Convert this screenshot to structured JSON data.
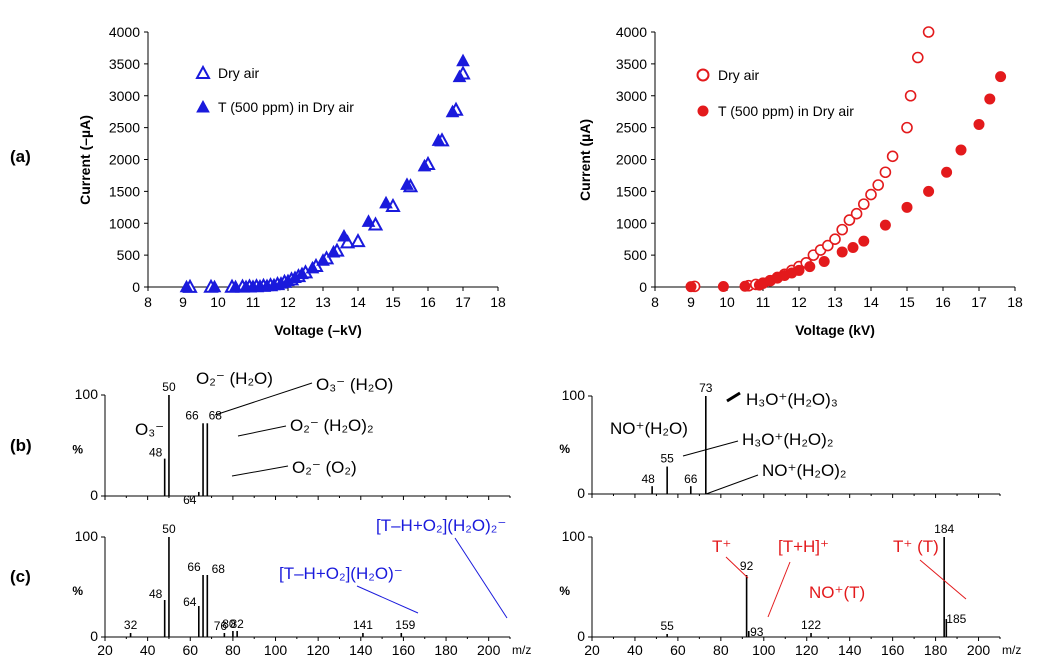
{
  "panel_labels": [
    "(a)",
    "(b)",
    "(c)"
  ],
  "colors": {
    "blue": "#1a1adc",
    "red": "#e31a1c",
    "black": "#000000"
  },
  "chart_data": [
    {
      "id": "a-left",
      "type": "scatter",
      "xlabel": "Voltage (–kV)",
      "ylabel": "Current (–µA)",
      "xlim": [
        8,
        18
      ],
      "ylim": [
        0,
        4000
      ],
      "xticks": [
        8,
        9,
        10,
        11,
        12,
        13,
        14,
        15,
        16,
        17,
        18
      ],
      "yticks": [
        0,
        500,
        1000,
        1500,
        2000,
        2500,
        3000,
        3500,
        4000
      ],
      "legend_position": "top-left",
      "series": [
        {
          "name": "Dry air",
          "marker": "triangle-open",
          "color": "#1a1adc",
          "x": [
            9.2,
            9.8,
            10.4,
            10.7,
            10.9,
            11.1,
            11.3,
            11.5,
            11.7,
            11.9,
            12.1,
            12.3,
            12.5,
            12.8,
            13.1,
            13.4,
            13.7,
            14.0,
            14.5,
            15.0,
            15.5,
            16.0,
            16.4,
            16.8,
            17.0
          ],
          "y": [
            2,
            3,
            4,
            6,
            8,
            12,
            18,
            28,
            45,
            80,
            120,
            170,
            230,
            330,
            450,
            570,
            700,
            720,
            980,
            1270,
            1580,
            1930,
            2300,
            2780,
            3350
          ]
        },
        {
          "name": "T (500 ppm) in Dry air",
          "marker": "triangle-filled",
          "color": "#1a1adc",
          "x": [
            9.1,
            9.9,
            10.5,
            10.8,
            11.0,
            11.2,
            11.4,
            11.6,
            11.8,
            12.0,
            12.2,
            12.4,
            12.7,
            13.0,
            13.3,
            13.6,
            14.3,
            14.8,
            15.4,
            15.9,
            16.3,
            16.7,
            16.9,
            17.0
          ],
          "y": [
            3,
            4,
            5,
            7,
            10,
            15,
            22,
            35,
            60,
            100,
            150,
            210,
            300,
            420,
            550,
            800,
            1030,
            1320,
            1610,
            1900,
            2300,
            2750,
            3300,
            3550
          ]
        }
      ]
    },
    {
      "id": "a-right",
      "type": "scatter",
      "xlabel": "Voltage (kV)",
      "ylabel": "Current (µA)",
      "xlim": [
        8,
        18
      ],
      "ylim": [
        0,
        4000
      ],
      "xticks": [
        8,
        9,
        10,
        11,
        12,
        13,
        14,
        15,
        16,
        17,
        18
      ],
      "yticks": [
        0,
        500,
        1000,
        1500,
        2000,
        2500,
        3000,
        3500,
        4000
      ],
      "legend_position": "top-left",
      "series": [
        {
          "name": "Dry air",
          "marker": "circle-open",
          "color": "#e31a1c",
          "x": [
            9.1,
            10.6,
            10.8,
            11.0,
            11.2,
            11.4,
            11.6,
            11.8,
            12.0,
            12.2,
            12.4,
            12.6,
            12.8,
            13.0,
            13.2,
            13.4,
            13.6,
            13.8,
            14.0,
            14.2,
            14.4,
            14.6,
            15.0,
            15.1,
            15.3,
            15.6
          ],
          "y": [
            10,
            20,
            40,
            60,
            100,
            150,
            200,
            260,
            320,
            380,
            500,
            580,
            650,
            750,
            900,
            1050,
            1150,
            1300,
            1450,
            1600,
            1800,
            2050,
            2500,
            3000,
            3600,
            4000
          ]
        },
        {
          "name": "T (500 ppm) in Dry air",
          "marker": "circle-filled",
          "color": "#e31a1c",
          "x": [
            9.0,
            9.9,
            10.5,
            10.9,
            11.0,
            11.2,
            11.4,
            11.6,
            11.8,
            12.0,
            12.3,
            12.7,
            13.2,
            13.5,
            13.8,
            14.4,
            15.0,
            15.6,
            16.1,
            16.5,
            17.0,
            17.3,
            17.6
          ],
          "y": [
            5,
            8,
            12,
            30,
            60,
            100,
            140,
            180,
            220,
            260,
            320,
            400,
            550,
            620,
            720,
            970,
            1250,
            1500,
            1800,
            2150,
            2550,
            2950,
            3300
          ]
        }
      ]
    },
    {
      "id": "b-left",
      "type": "bar",
      "ylabel": "%",
      "xlim": [
        20,
        210
      ],
      "ylim": [
        0,
        100
      ],
      "yticks": [
        0,
        100
      ],
      "peaks": [
        {
          "x": 48,
          "y": 37,
          "label": "48"
        },
        {
          "x": 50,
          "y": 100,
          "label": "50"
        },
        {
          "x": 64,
          "y": 4,
          "label": "64"
        },
        {
          "x": 66,
          "y": 72,
          "label": "66"
        },
        {
          "x": 68,
          "y": 72,
          "label": "68"
        }
      ],
      "annotations": [
        {
          "text": "O₃⁻",
          "color": "#000000"
        },
        {
          "text": "O₂⁻ (H₂O)",
          "color": "#000000"
        },
        {
          "text": "O₃⁻ (H₂O)",
          "color": "#000000"
        },
        {
          "text": "O₂⁻ (H₂O)₂",
          "color": "#000000"
        },
        {
          "text": "O₂⁻ (O₂)",
          "color": "#000000"
        }
      ]
    },
    {
      "id": "b-right",
      "type": "bar",
      "ylabel": "%",
      "xlim": [
        20,
        210
      ],
      "ylim": [
        0,
        100
      ],
      "yticks": [
        0,
        100
      ],
      "peaks": [
        {
          "x": 48,
          "y": 8,
          "label": "48"
        },
        {
          "x": 55,
          "y": 28,
          "label": "55"
        },
        {
          "x": 66,
          "y": 8,
          "label": "66"
        },
        {
          "x": 73,
          "y": 100,
          "label": "73"
        }
      ],
      "annotations": [
        {
          "text": "NO⁺(H₂O)",
          "color": "#000000"
        },
        {
          "text": "H₃O⁺(H₂O)₃",
          "color": "#000000"
        },
        {
          "text": "H₃O⁺(H₂O)₂",
          "color": "#000000"
        },
        {
          "text": "NO⁺(H₂O)₂",
          "color": "#000000"
        }
      ]
    },
    {
      "id": "c-left",
      "type": "bar",
      "ylabel": "%",
      "xlim": [
        20,
        210
      ],
      "ylim": [
        0,
        100
      ],
      "yticks": [
        0,
        100
      ],
      "xticks": [
        20,
        40,
        60,
        80,
        100,
        120,
        140,
        160,
        180,
        200
      ],
      "xunit": "m/z",
      "peaks": [
        {
          "x": 32,
          "y": 4,
          "label": "32"
        },
        {
          "x": 48,
          "y": 37,
          "label": "48"
        },
        {
          "x": 50,
          "y": 100,
          "label": "50"
        },
        {
          "x": 64,
          "y": 31,
          "label": "64"
        },
        {
          "x": 66,
          "y": 62,
          "label": "66"
        },
        {
          "x": 68,
          "y": 62,
          "label": "68"
        },
        {
          "x": 76,
          "y": 4,
          "label": "76"
        },
        {
          "x": 80,
          "y": 6,
          "label": "80"
        },
        {
          "x": 82,
          "y": 6,
          "label": "82"
        },
        {
          "x": 141,
          "y": 4,
          "label": "141"
        },
        {
          "x": 159,
          "y": 4,
          "label": "159"
        }
      ],
      "annotations": [
        {
          "text": "[T–H+O₂](H₂O)₂⁻",
          "color": "#1a1adc"
        },
        {
          "text": "[T–H+O₂](H₂O)⁻",
          "color": "#1a1adc"
        }
      ]
    },
    {
      "id": "c-right",
      "type": "bar",
      "ylabel": "%",
      "xlim": [
        20,
        210
      ],
      "ylim": [
        0,
        100
      ],
      "yticks": [
        0,
        100
      ],
      "xticks": [
        20,
        40,
        60,
        80,
        100,
        120,
        140,
        160,
        180,
        200
      ],
      "xunit": "m/z",
      "peaks": [
        {
          "x": 55,
          "y": 3,
          "label": "55"
        },
        {
          "x": 92,
          "y": 62,
          "label": "92"
        },
        {
          "x": 93,
          "y": 6,
          "label": "93"
        },
        {
          "x": 122,
          "y": 4,
          "label": "122"
        },
        {
          "x": 184,
          "y": 100,
          "label": "184"
        },
        {
          "x": 185,
          "y": 18,
          "label": "185"
        }
      ],
      "annotations": [
        {
          "text": "T⁺",
          "color": "#e31a1c"
        },
        {
          "text": "[T+H]⁺",
          "color": "#e31a1c"
        },
        {
          "text": "T⁺ (T)",
          "color": "#e31a1c"
        },
        {
          "text": "NO⁺(T)",
          "color": "#e31a1c"
        }
      ]
    }
  ]
}
